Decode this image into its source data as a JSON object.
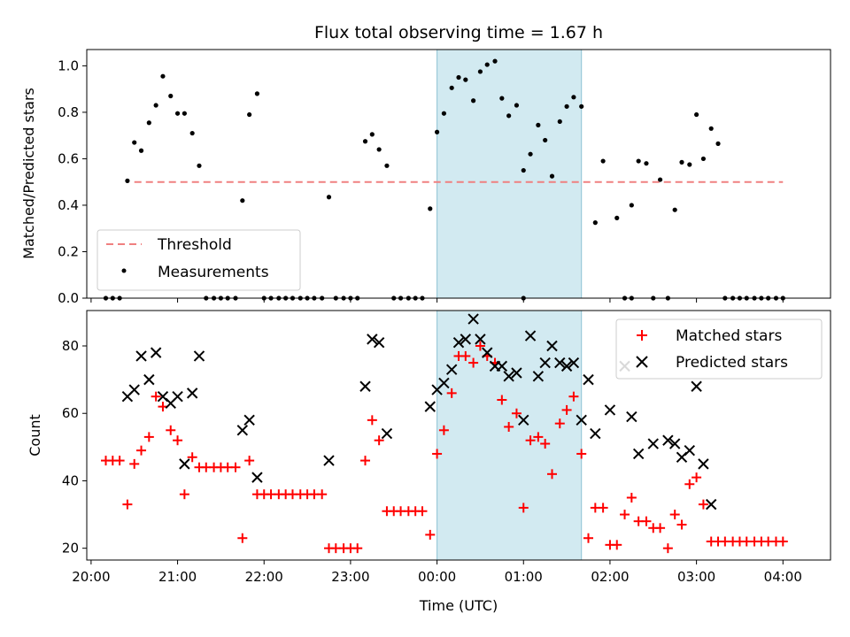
{
  "chart_data": [
    {
      "type": "scatter",
      "title": "Flux total observing time = 1.67 h",
      "ylabel": "Matched/Predicted stars",
      "xlim_hours": [
        -4.05,
        4.55
      ],
      "ylim": [
        0,
        1.07
      ],
      "yticks": [
        "0.0",
        "0.2",
        "0.4",
        "0.6",
        "0.8",
        "1.0"
      ],
      "highlight_span_hours": [
        0,
        1.67
      ],
      "highlight_color": "#add8e6",
      "threshold": {
        "name": "Threshold",
        "y": 0.5,
        "x_range_hours": [
          -3.5,
          4.0
        ],
        "color": "#f08080"
      },
      "measurements": {
        "name": "Measurements",
        "color": "#000000",
        "points": [
          [
            -3.83,
            0
          ],
          [
            -3.75,
            0
          ],
          [
            -3.67,
            0
          ],
          [
            -3.58,
            0.505
          ],
          [
            -3.5,
            0.67
          ],
          [
            -3.42,
            0.635
          ],
          [
            -3.33,
            0.755
          ],
          [
            -3.25,
            0.83
          ],
          [
            -3.17,
            0.955
          ],
          [
            -3.08,
            0.87
          ],
          [
            -3.0,
            0.795
          ],
          [
            -2.92,
            0.795
          ],
          [
            -2.83,
            0.71
          ],
          [
            -2.75,
            0.57
          ],
          [
            -2.67,
            0
          ],
          [
            -2.58,
            0
          ],
          [
            -2.5,
            0
          ],
          [
            -2.42,
            0
          ],
          [
            -2.33,
            0
          ],
          [
            -2.25,
            0.42
          ],
          [
            -2.17,
            0.79
          ],
          [
            -2.08,
            0.88
          ],
          [
            -2.0,
            0
          ],
          [
            -1.92,
            0
          ],
          [
            -1.83,
            0
          ],
          [
            -1.75,
            0
          ],
          [
            -1.67,
            0
          ],
          [
            -1.58,
            0
          ],
          [
            -1.5,
            0
          ],
          [
            -1.42,
            0
          ],
          [
            -1.33,
            0
          ],
          [
            -1.25,
            0.435
          ],
          [
            -1.17,
            0
          ],
          [
            -1.08,
            0
          ],
          [
            -1.0,
            0
          ],
          [
            -0.92,
            0
          ],
          [
            -0.83,
            0.675
          ],
          [
            -0.75,
            0.705
          ],
          [
            -0.67,
            0.64
          ],
          [
            -0.58,
            0.57
          ],
          [
            -0.5,
            0
          ],
          [
            -0.42,
            0
          ],
          [
            -0.33,
            0
          ],
          [
            -0.25,
            0
          ],
          [
            -0.17,
            0
          ],
          [
            -0.08,
            0.385
          ],
          [
            0.0,
            0.715
          ],
          [
            0.08,
            0.795
          ],
          [
            0.17,
            0.905
          ],
          [
            0.25,
            0.95
          ],
          [
            0.33,
            0.94
          ],
          [
            0.42,
            0.85
          ],
          [
            0.5,
            0.975
          ],
          [
            0.58,
            1.005
          ],
          [
            0.67,
            1.02
          ],
          [
            0.75,
            0.86
          ],
          [
            0.83,
            0.785
          ],
          [
            0.92,
            0.83
          ],
          [
            1.0,
            0.55
          ],
          [
            1.08,
            0.62
          ],
          [
            1.17,
            0.745
          ],
          [
            1.25,
            0.68
          ],
          [
            1.33,
            0.525
          ],
          [
            1.42,
            0.76
          ],
          [
            1.5,
            0.825
          ],
          [
            1.58,
            0.865
          ],
          [
            1.67,
            0.825
          ],
          [
            1.83,
            0.325
          ],
          [
            1.92,
            0.59
          ],
          [
            2.08,
            0.345
          ],
          [
            2.17,
            0
          ],
          [
            2.25,
            0.4
          ],
          [
            2.33,
            0.59
          ],
          [
            2.42,
            0.58
          ],
          [
            2.5,
            0
          ],
          [
            2.58,
            0.51
          ],
          [
            2.67,
            0
          ],
          [
            2.75,
            0.38
          ],
          [
            2.83,
            0.585
          ],
          [
            2.92,
            0.575
          ],
          [
            3.0,
            0.79
          ],
          [
            3.08,
            0.6
          ],
          [
            3.17,
            0.73
          ],
          [
            3.25,
            0.665
          ],
          [
            3.33,
            0
          ],
          [
            3.42,
            0
          ],
          [
            3.5,
            0
          ],
          [
            3.58,
            0
          ],
          [
            3.67,
            0
          ],
          [
            3.75,
            0
          ],
          [
            3.83,
            0
          ],
          [
            3.92,
            0
          ],
          [
            4.0,
            0
          ],
          [
            1.0,
            0
          ],
          [
            2.25,
            0
          ]
        ]
      },
      "legend_position": "lower-left"
    },
    {
      "type": "scatter",
      "xlabel": "Time (UTC)",
      "ylabel": "Count",
      "xlim_hours": [
        -4.05,
        4.55
      ],
      "ylim": [
        16.5,
        90.5
      ],
      "yticks": [
        "20",
        "40",
        "60",
        "80"
      ],
      "xtick_values_hours": [
        -4,
        -3,
        -2,
        -1,
        0,
        1,
        2,
        3,
        4
      ],
      "xtick_labels": [
        "20:00",
        "21:00",
        "22:00",
        "23:00",
        "00:00",
        "01:00",
        "02:00",
        "03:00",
        "04:00"
      ],
      "highlight_span_hours": [
        0,
        1.67
      ],
      "highlight_color": "#add8e6",
      "matched": {
        "name": "Matched stars",
        "color": "#ff0000",
        "points": [
          [
            -3.83,
            46
          ],
          [
            -3.75,
            46
          ],
          [
            -3.67,
            46
          ],
          [
            -3.58,
            33
          ],
          [
            -3.5,
            45
          ],
          [
            -3.42,
            49
          ],
          [
            -3.33,
            53
          ],
          [
            -3.25,
            65
          ],
          [
            -3.17,
            62
          ],
          [
            -3.08,
            55
          ],
          [
            -3.0,
            52
          ],
          [
            -2.92,
            36
          ],
          [
            -2.83,
            47
          ],
          [
            -2.75,
            44
          ],
          [
            -2.67,
            44
          ],
          [
            -2.58,
            44
          ],
          [
            -2.5,
            44
          ],
          [
            -2.42,
            44
          ],
          [
            -2.33,
            44
          ],
          [
            -2.25,
            23
          ],
          [
            -2.17,
            46
          ],
          [
            -2.08,
            36
          ],
          [
            -2.0,
            36
          ],
          [
            -1.92,
            36
          ],
          [
            -1.83,
            36
          ],
          [
            -1.75,
            36
          ],
          [
            -1.67,
            36
          ],
          [
            -1.58,
            36
          ],
          [
            -1.5,
            36
          ],
          [
            -1.42,
            36
          ],
          [
            -1.33,
            36
          ],
          [
            -1.25,
            20
          ],
          [
            -1.17,
            20
          ],
          [
            -1.08,
            20
          ],
          [
            -1.0,
            20
          ],
          [
            -0.92,
            20
          ],
          [
            -0.83,
            46
          ],
          [
            -0.75,
            58
          ],
          [
            -0.67,
            52
          ],
          [
            -0.58,
            31
          ],
          [
            -0.5,
            31
          ],
          [
            -0.42,
            31
          ],
          [
            -0.33,
            31
          ],
          [
            -0.25,
            31
          ],
          [
            -0.17,
            31
          ],
          [
            -0.08,
            24
          ],
          [
            0.0,
            48
          ],
          [
            0.08,
            55
          ],
          [
            0.17,
            66
          ],
          [
            0.25,
            77
          ],
          [
            0.33,
            77
          ],
          [
            0.42,
            75
          ],
          [
            0.5,
            80
          ],
          [
            0.58,
            77
          ],
          [
            0.67,
            75
          ],
          [
            0.75,
            64
          ],
          [
            0.83,
            56
          ],
          [
            0.92,
            60
          ],
          [
            1.0,
            32
          ],
          [
            1.08,
            52
          ],
          [
            1.17,
            53
          ],
          [
            1.25,
            51
          ],
          [
            1.33,
            42
          ],
          [
            1.42,
            57
          ],
          [
            1.5,
            61
          ],
          [
            1.58,
            65
          ],
          [
            1.67,
            48
          ],
          [
            1.75,
            23
          ],
          [
            1.83,
            32
          ],
          [
            1.92,
            32
          ],
          [
            2.0,
            21
          ],
          [
            2.08,
            21
          ],
          [
            2.17,
            30
          ],
          [
            2.25,
            35
          ],
          [
            2.33,
            28
          ],
          [
            2.42,
            28
          ],
          [
            2.5,
            26
          ],
          [
            2.58,
            26
          ],
          [
            2.67,
            20
          ],
          [
            2.75,
            30
          ],
          [
            2.83,
            27
          ],
          [
            2.92,
            39
          ],
          [
            3.0,
            41
          ],
          [
            3.08,
            33
          ],
          [
            3.17,
            22
          ],
          [
            3.25,
            22
          ],
          [
            3.33,
            22
          ],
          [
            3.42,
            22
          ],
          [
            3.5,
            22
          ],
          [
            3.58,
            22
          ],
          [
            3.67,
            22
          ],
          [
            3.75,
            22
          ],
          [
            3.83,
            22
          ],
          [
            3.92,
            22
          ],
          [
            4.0,
            22
          ]
        ]
      },
      "predicted": {
        "name": "Predicted stars",
        "color": "#000000",
        "points": [
          [
            -3.58,
            65
          ],
          [
            -3.5,
            67
          ],
          [
            -3.42,
            77
          ],
          [
            -3.33,
            70
          ],
          [
            -3.25,
            78
          ],
          [
            -3.17,
            65
          ],
          [
            -3.08,
            63
          ],
          [
            -3.0,
            65
          ],
          [
            -2.92,
            45
          ],
          [
            -2.83,
            66
          ],
          [
            -2.75,
            77
          ],
          [
            -2.25,
            55
          ],
          [
            -2.17,
            58
          ],
          [
            -2.08,
            41
          ],
          [
            -1.25,
            46
          ],
          [
            -0.83,
            68
          ],
          [
            -0.75,
            82
          ],
          [
            -0.67,
            81
          ],
          [
            -0.58,
            54
          ],
          [
            -0.08,
            62
          ],
          [
            0.0,
            67
          ],
          [
            0.08,
            69
          ],
          [
            0.17,
            73
          ],
          [
            0.25,
            81
          ],
          [
            0.33,
            82
          ],
          [
            0.42,
            88
          ],
          [
            0.5,
            82
          ],
          [
            0.58,
            78
          ],
          [
            0.67,
            74
          ],
          [
            0.75,
            74
          ],
          [
            0.83,
            71
          ],
          [
            0.92,
            72
          ],
          [
            1.0,
            58
          ],
          [
            1.08,
            83
          ],
          [
            1.17,
            71
          ],
          [
            1.25,
            75
          ],
          [
            1.33,
            80
          ],
          [
            1.42,
            75
          ],
          [
            1.5,
            74
          ],
          [
            1.58,
            75
          ],
          [
            1.67,
            58
          ],
          [
            1.75,
            70
          ],
          [
            1.83,
            54
          ],
          [
            2.0,
            61
          ],
          [
            2.17,
            74
          ],
          [
            2.25,
            59
          ],
          [
            2.33,
            48
          ],
          [
            2.5,
            51
          ],
          [
            2.67,
            52
          ],
          [
            2.75,
            51
          ],
          [
            2.83,
            47
          ],
          [
            2.92,
            49
          ],
          [
            3.0,
            68
          ],
          [
            3.08,
            45
          ],
          [
            3.17,
            33
          ]
        ]
      },
      "legend_position": "top-right"
    }
  ]
}
